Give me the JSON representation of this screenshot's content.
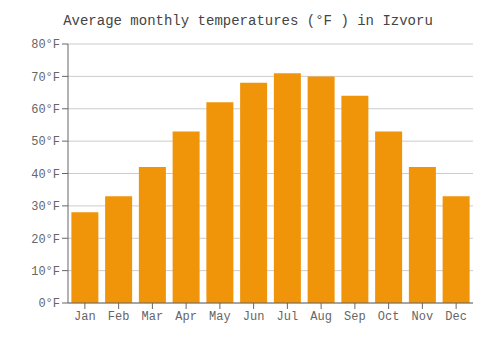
{
  "chart_data": {
    "type": "bar",
    "title": "Average monthly temperatures (°F ) in Izvoru",
    "categories": [
      "Jan",
      "Feb",
      "Mar",
      "Apr",
      "May",
      "Jun",
      "Jul",
      "Aug",
      "Sep",
      "Oct",
      "Nov",
      "Dec"
    ],
    "values": [
      28,
      33,
      42,
      53,
      62,
      68,
      71,
      70,
      64,
      53,
      42,
      33
    ],
    "color": "#F0940A",
    "ylim": [
      0,
      80
    ],
    "yticks": [
      {
        "value": 0,
        "label": "0°F"
      },
      {
        "value": 10,
        "label": "10°F"
      },
      {
        "value": 20,
        "label": "20°F"
      },
      {
        "value": 30,
        "label": "30°F"
      },
      {
        "value": 40,
        "label": "40°F"
      },
      {
        "value": 50,
        "label": "50°F"
      },
      {
        "value": 60,
        "label": "60°F"
      },
      {
        "value": 70,
        "label": "70°F"
      },
      {
        "value": 80,
        "label": "80°F"
      }
    ],
    "grid": true
  }
}
